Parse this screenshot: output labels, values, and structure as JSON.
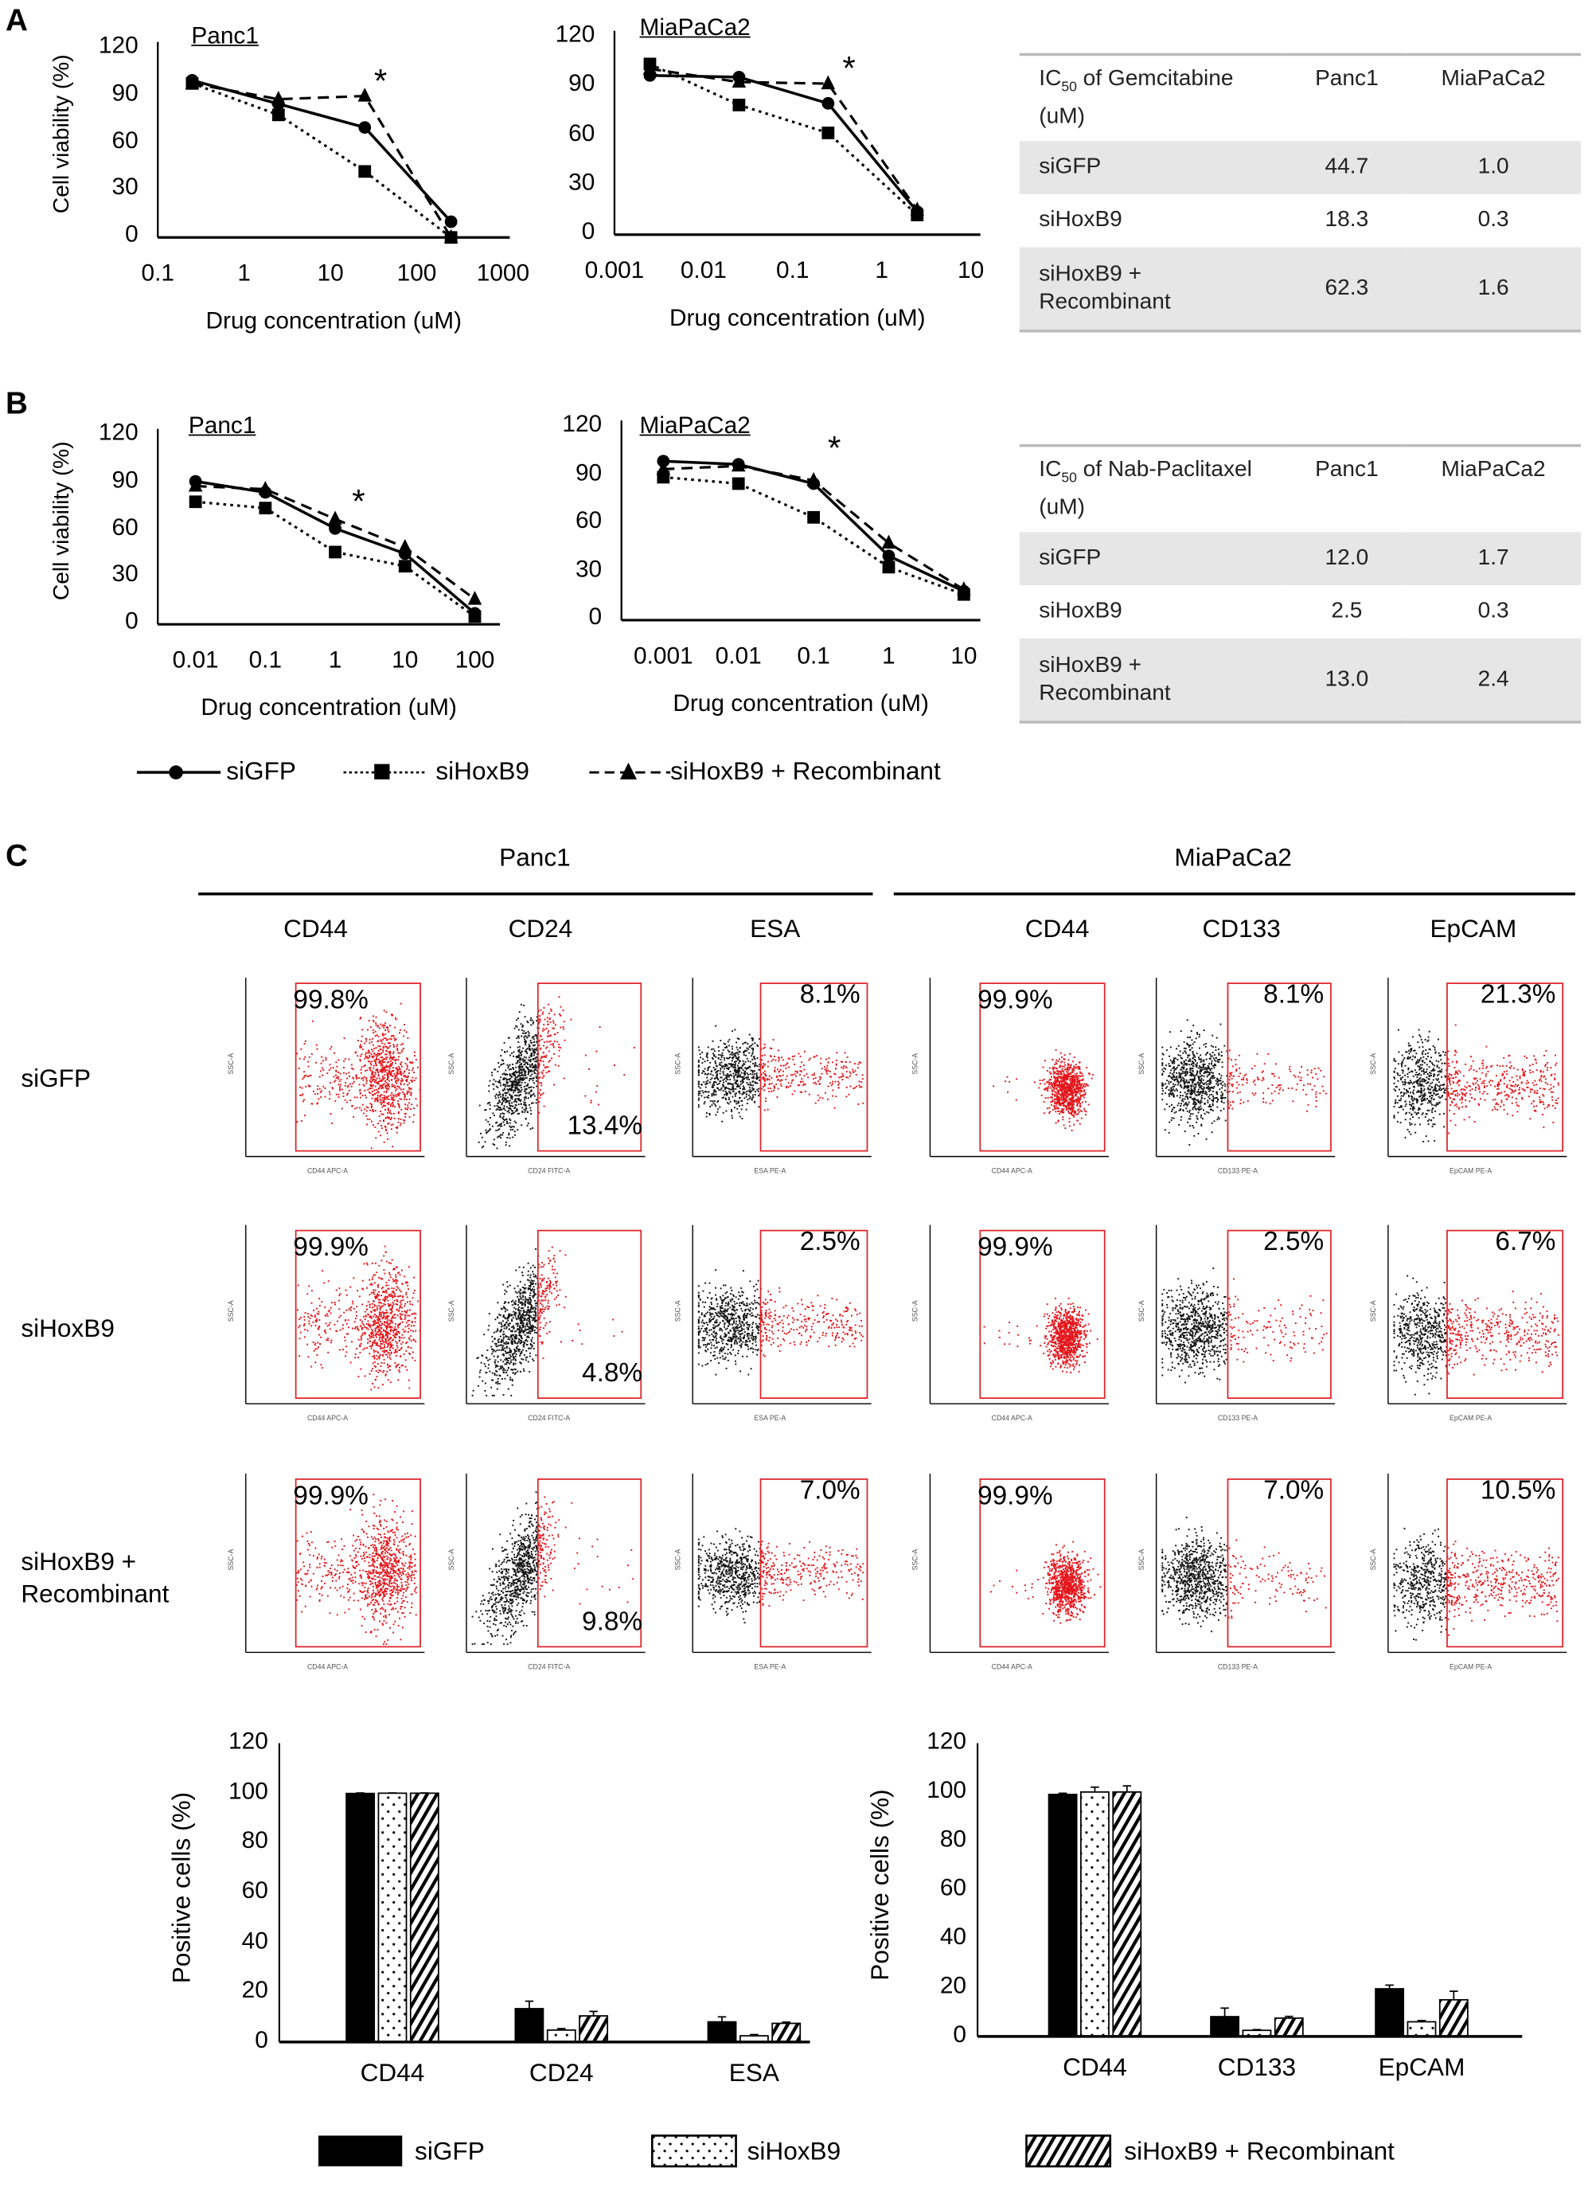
{
  "panels": {
    "a": "A",
    "b": "B",
    "c": "C"
  },
  "line_legend": [
    "siGFP",
    "siHoxB9",
    "siHoxB9 + Recombinant"
  ],
  "tables": [
    {
      "header": {
        "prefix": "IC",
        "sub": "50",
        "suffix": " of Gemcitabine (uM)"
      },
      "columns": [
        "Panc1",
        "MiaPaCa2"
      ],
      "rows": [
        {
          "label": "siGFP",
          "values": [
            "44.7",
            "1.0"
          ]
        },
        {
          "label": "siHoxB9",
          "values": [
            "18.3",
            "0.3"
          ]
        },
        {
          "label": "siHoxB9 + Recombinant",
          "values": [
            "62.3",
            "1.6"
          ]
        }
      ]
    },
    {
      "header": {
        "prefix": "IC",
        "sub": "50",
        "suffix": " of Nab-Paclitaxel (uM)"
      },
      "columns": [
        "Panc1",
        "MiaPaCa2"
      ],
      "rows": [
        {
          "label": "siGFP",
          "values": [
            "12.0",
            "1.7"
          ]
        },
        {
          "label": "siHoxB9",
          "values": [
            "2.5",
            "0.3"
          ]
        },
        {
          "label": "siHoxB9 + Recombinant",
          "values": [
            "13.0",
            "2.4"
          ]
        }
      ]
    }
  ],
  "flow": {
    "groups": [
      {
        "name": "Panc1",
        "markers": [
          "CD44",
          "CD24",
          "ESA"
        ]
      },
      {
        "name": "MiaPaCa2",
        "markers": [
          "CD44",
          "CD133",
          "EpCAM"
        ]
      }
    ],
    "rows": [
      {
        "label": "siGFP",
        "percents": [
          "99.8%",
          "13.4%",
          "8.1%",
          "99.9%",
          "8.1%",
          "21.3%"
        ]
      },
      {
        "label": "siHoxB9",
        "percents": [
          "99.9%",
          "4.8%",
          "2.5%",
          "99.9%",
          "2.5%",
          "6.7%"
        ]
      },
      {
        "label": "siHoxB9 + Recombinant",
        "percents": [
          "99.9%",
          "9.8%",
          "7.0%",
          "99.9%",
          "7.0%",
          "10.5%"
        ]
      }
    ],
    "x_axis_labels": [
      "CD44 APC-A",
      "CD24 FITC-A",
      "ESA PE-A",
      "CD44 APC-A",
      "CD133 PE-A",
      "EpCAM PE-A"
    ],
    "y_axis_label": "SSC-A",
    "gate_color": "#e0242a"
  },
  "bar_legend": [
    "siGFP",
    "siHoxB9",
    "siHoxB9 + Recombinant"
  ],
  "chart_data": [
    {
      "type": "line",
      "title": "Panc1",
      "xlabel": "Drug concentration (uM)",
      "ylabel": "Cell viability (%)",
      "x_scale": "log",
      "xlim": [
        0.1,
        1000
      ],
      "ylim": [
        0,
        120
      ],
      "x_ticks": [
        "0.1",
        "1",
        "10",
        "100",
        "1000"
      ],
      "y_ticks": [
        "0",
        "30",
        "60",
        "90",
        "120"
      ],
      "x": [
        0.25,
        2.5,
        25,
        250
      ],
      "series": [
        {
          "name": "siGFP",
          "values": [
            100,
            85,
            70,
            10
          ]
        },
        {
          "name": "siHoxB9",
          "values": [
            98,
            78,
            42,
            0
          ]
        },
        {
          "name": "siHoxB9 + Recombinant",
          "values": [
            98,
            88,
            90,
            0
          ]
        }
      ],
      "annotations": [
        {
          "text": "*",
          "x": 40,
          "y": 95
        }
      ]
    },
    {
      "type": "line",
      "title": "MiaPaCa2",
      "xlabel": "Drug concentration (uM)",
      "ylabel": "",
      "x_scale": "log",
      "xlim": [
        0.001,
        10
      ],
      "ylim": [
        0,
        120
      ],
      "x_ticks": [
        "0.001",
        "0.01",
        "0.1",
        "1",
        "10"
      ],
      "y_ticks": [
        "0",
        "30",
        "60",
        "90",
        "120"
      ],
      "x": [
        0.0025,
        0.025,
        0.25,
        2.5
      ],
      "series": [
        {
          "name": "siGFP",
          "values": [
            97,
            96,
            80,
            14
          ]
        },
        {
          "name": "siHoxB9",
          "values": [
            104,
            79,
            62,
            12
          ]
        },
        {
          "name": "siHoxB9 + Recombinant",
          "values": [
            101,
            93,
            92,
            15
          ]
        }
      ],
      "annotations": [
        {
          "text": "*",
          "x": 0.45,
          "y": 97
        }
      ]
    },
    {
      "type": "line",
      "title": "Panc1",
      "xlabel": "Drug concentration (uM)",
      "ylabel": "Cell viability (%)",
      "x_scale": "log",
      "xlim": [
        0.01,
        100
      ],
      "ylim": [
        0,
        120
      ],
      "x_ticks": [
        "0.01",
        "0.1",
        "1",
        "10",
        "100"
      ],
      "y_ticks": [
        "0",
        "30",
        "60",
        "90",
        "120"
      ],
      "x": [
        0.01,
        0.1,
        1,
        10,
        100
      ],
      "series": [
        {
          "name": "siGFP",
          "values": [
            91,
            84,
            61,
            45,
            7
          ]
        },
        {
          "name": "siHoxB9",
          "values": [
            78,
            74,
            46,
            37,
            5
          ]
        },
        {
          "name": "siHoxB9 + Recombinant",
          "values": [
            88,
            86,
            67,
            49,
            16
          ]
        }
      ],
      "annotations": [
        {
          "text": "*",
          "x": 2.3,
          "y": 74
        }
      ]
    },
    {
      "type": "line",
      "title": "MiaPaCa2",
      "xlabel": "Drug concentration (uM)",
      "ylabel": "",
      "x_scale": "log",
      "xlim": [
        0.001,
        10
      ],
      "ylim": [
        0,
        120
      ],
      "x_ticks": [
        "0.001",
        "0.01",
        "0.1",
        "1",
        "10"
      ],
      "y_ticks": [
        "0",
        "30",
        "60",
        "90",
        "120"
      ],
      "x": [
        0.001,
        0.01,
        0.1,
        1,
        10
      ],
      "series": [
        {
          "name": "siGFP",
          "values": [
            99,
            97,
            85,
            40,
            18
          ]
        },
        {
          "name": "siHoxB9",
          "values": [
            89,
            85,
            64,
            33,
            16
          ]
        },
        {
          "name": "siHoxB9 + Recombinant",
          "values": [
            94,
            96,
            87,
            48,
            19
          ]
        }
      ],
      "annotations": [
        {
          "text": "*",
          "x": 0.2,
          "y": 103
        }
      ]
    },
    {
      "type": "bar",
      "ylabel": "Positive cells (%)",
      "ylim": [
        0,
        120
      ],
      "y_ticks": [
        "0",
        "20",
        "40",
        "60",
        "80",
        "100",
        "120"
      ],
      "categories": [
        "CD44",
        "CD24",
        "ESA"
      ],
      "series": [
        {
          "name": "siGFP",
          "values": [
            99.8,
            13.4,
            8.1
          ],
          "errors": [
            0.2,
            3.0,
            2.0
          ]
        },
        {
          "name": "siHoxB9",
          "values": [
            99.9,
            4.8,
            2.5
          ],
          "errors": [
            0.1,
            0.6,
            0.5
          ]
        },
        {
          "name": "siHoxB9 + Recombinant",
          "values": [
            99.9,
            10.5,
            7.5
          ],
          "errors": [
            0.1,
            1.8,
            0.5
          ]
        }
      ]
    },
    {
      "type": "bar",
      "ylabel": "Positive cells (%)",
      "ylim": [
        0,
        120
      ],
      "y_ticks": [
        "0",
        "20",
        "40",
        "60",
        "80",
        "100",
        "120"
      ],
      "categories": [
        "CD44",
        "CD133",
        "EpCAM"
      ],
      "series": [
        {
          "name": "siGFP",
          "values": [
            99.0,
            8.1,
            19.5
          ],
          "errors": [
            0.5,
            3.5,
            1.5
          ]
        },
        {
          "name": "siHoxB9",
          "values": [
            100.0,
            2.5,
            6.0
          ],
          "errors": [
            2.0,
            0.3,
            0.5
          ]
        },
        {
          "name": "siHoxB9 + Recombinant",
          "values": [
            100.0,
            7.5,
            15.0
          ],
          "errors": [
            2.5,
            0.7,
            3.5
          ]
        }
      ]
    }
  ]
}
